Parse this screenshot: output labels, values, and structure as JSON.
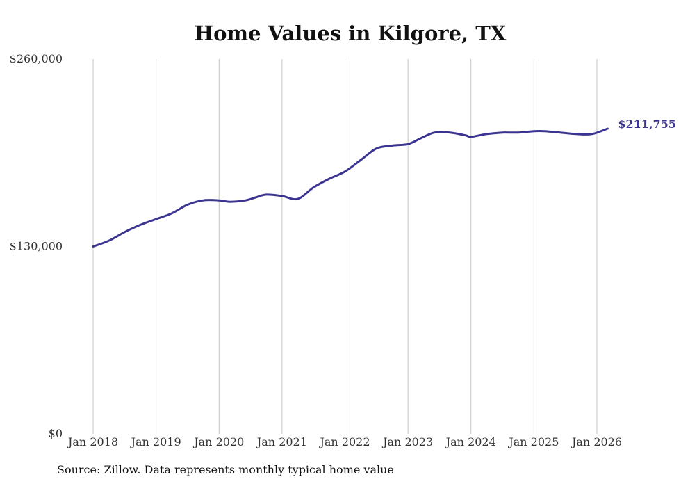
{
  "chart_data": {
    "type": "line",
    "title": "Home Values in Kilgore, TX",
    "xlabel": "",
    "ylabel": "",
    "ylim": [
      0,
      260000
    ],
    "y_ticks": [
      {
        "value": 260000,
        "label": "$260,000"
      },
      {
        "value": 130000,
        "label": "$130,000"
      },
      {
        "value": 0,
        "label": "$0"
      }
    ],
    "x_ticks": [
      {
        "value": 2018.0,
        "label": "Jan 2018"
      },
      {
        "value": 2019.0,
        "label": "Jan 2019"
      },
      {
        "value": 2020.0,
        "label": "Jan 2020"
      },
      {
        "value": 2021.0,
        "label": "Jan 2021"
      },
      {
        "value": 2022.0,
        "label": "Jan 2022"
      },
      {
        "value": 2023.0,
        "label": "Jan 2023"
      },
      {
        "value": 2024.0,
        "label": "Jan 2024"
      },
      {
        "value": 2025.0,
        "label": "Jan 2025"
      },
      {
        "value": 2026.0,
        "label": "Jan 2026"
      }
    ],
    "grid": "vertical",
    "line_color": "#3b3591",
    "series": [
      {
        "name": "Typical home value",
        "x": [
          2018.0,
          2018.25,
          2018.5,
          2018.75,
          2019.0,
          2019.25,
          2019.5,
          2019.75,
          2020.0,
          2020.17,
          2020.42,
          2020.58,
          2020.75,
          2021.0,
          2021.25,
          2021.5,
          2021.75,
          2022.0,
          2022.25,
          2022.5,
          2022.75,
          2023.0,
          2023.2,
          2023.42,
          2023.67,
          2023.92,
          2024.0,
          2024.25,
          2024.5,
          2024.75,
          2025.0,
          2025.17,
          2025.42,
          2025.67,
          2025.92,
          2026.17
        ],
        "values": [
          130000,
          134000,
          140000,
          145000,
          149000,
          153000,
          159000,
          162000,
          162000,
          161000,
          162000,
          164000,
          166000,
          165000,
          163000,
          171000,
          177000,
          182000,
          190000,
          198000,
          200000,
          201000,
          205000,
          209000,
          209000,
          207000,
          206000,
          208000,
          209000,
          209000,
          210000,
          210000,
          209000,
          208000,
          208000,
          211755
        ]
      }
    ],
    "end_label": "$211,755"
  },
  "source": "Source: Zillow. Data represents monthly typical home value"
}
